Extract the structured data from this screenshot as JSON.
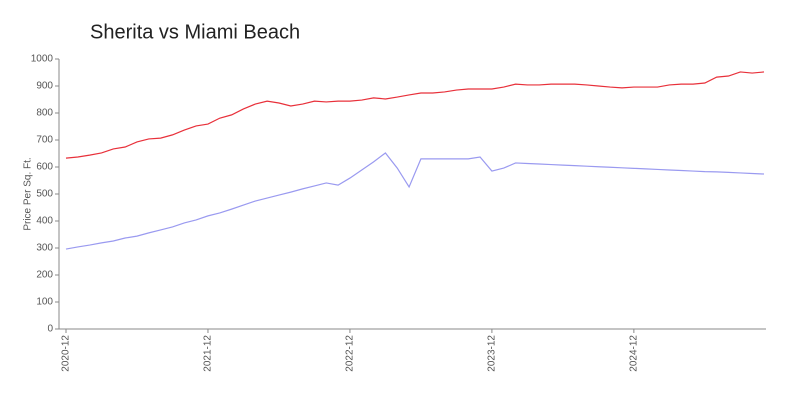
{
  "chart_data": {
    "type": "line",
    "title": "Sherita vs Miami Beach",
    "y_label": "Price Per Sq. Ft.",
    "categories": [
      "2020-12",
      null,
      null,
      null,
      null,
      null,
      null,
      null,
      null,
      null,
      null,
      null,
      "2021-12",
      null,
      null,
      null,
      null,
      null,
      null,
      null,
      null,
      null,
      null,
      null,
      "2022-12",
      null,
      null,
      null,
      null,
      null,
      null,
      null,
      null,
      null,
      null,
      null,
      "2023-12",
      null,
      null,
      null,
      null,
      null,
      null,
      null,
      null,
      null,
      null,
      null,
      "2024-12",
      null,
      null,
      null,
      null,
      null,
      null,
      null,
      null,
      null,
      null,
      null
    ],
    "series": [
      {
        "color": "#e8303a",
        "values": [
          633,
          637,
          644,
          652,
          667,
          674,
          693,
          704,
          707,
          719,
          737,
          752,
          759,
          781,
          793,
          815,
          833,
          844,
          837,
          826,
          833,
          844,
          841,
          844,
          844,
          848,
          856,
          852,
          859,
          867,
          874,
          874,
          878,
          885,
          889,
          889,
          889,
          896,
          907,
          904,
          904,
          907,
          907,
          907,
          904,
          900,
          896,
          893,
          896,
          896,
          896,
          904,
          907,
          907,
          911,
          933,
          937,
          952,
          948,
          952
        ]
      },
      {
        "color": "#9a9af0",
        "values": [
          296,
          304,
          311,
          319,
          326,
          337,
          344,
          356,
          367,
          378,
          393,
          404,
          419,
          430,
          444,
          459,
          474,
          485,
          496,
          507,
          519,
          530,
          541,
          533,
          559,
          589,
          619,
          652,
          596,
          526,
          630,
          630,
          630,
          630,
          630,
          637,
          585,
          596,
          615,
          613,
          611,
          609,
          607,
          605,
          603,
          601,
          599,
          597,
          595,
          593,
          591,
          589,
          587,
          585,
          583,
          582,
          580,
          578,
          576,
          574
        ]
      }
    ],
    "ylim": [
      0,
      1000
    ],
    "yticks": [
      0,
      100,
      200,
      300,
      400,
      500,
      600,
      700,
      800,
      900,
      1000
    ]
  }
}
